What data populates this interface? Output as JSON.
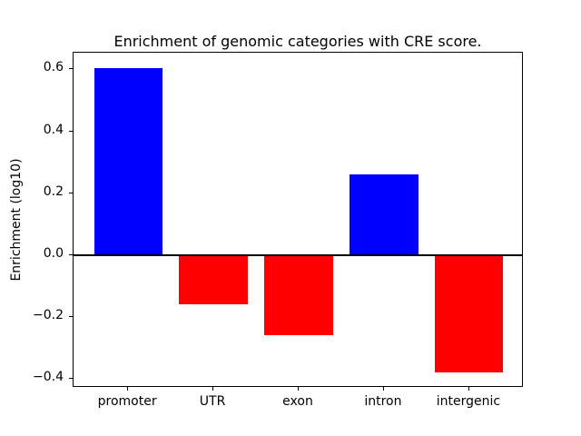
{
  "figure": {
    "title": "Enrichment of genomic categories with CRE score.",
    "ylabel": "Enrichment (log10)"
  },
  "chart_data": {
    "type": "bar",
    "title": "Enrichment of genomic categories with CRE score.",
    "xlabel": "",
    "ylabel": "Enrichment (log10)",
    "categories": [
      "promoter",
      "UTR",
      "exon",
      "intron",
      "intergenic"
    ],
    "values": [
      0.605,
      -0.16,
      -0.26,
      0.26,
      -0.38
    ],
    "bar_colors": [
      "#0000ff",
      "#ff0000",
      "#ff0000",
      "#0000ff",
      "#ff0000"
    ],
    "positive_color": "#0000ff",
    "negative_color": "#ff0000",
    "ytick_values": [
      0.6,
      0.4,
      0.2,
      0.0,
      -0.2,
      -0.4
    ],
    "ytick_labels": [
      "0.6",
      "0.4",
      "0.2",
      "0.0",
      "−0.2",
      "−0.4"
    ],
    "ylim": [
      -0.429,
      0.654
    ],
    "xlim": [
      -0.64,
      4.64
    ],
    "bar_width": 0.8,
    "grid": false,
    "legend": "none",
    "zero_line": true,
    "axis_color": "#000000",
    "background_color": "#ffffff"
  }
}
